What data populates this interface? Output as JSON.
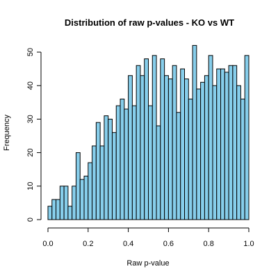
{
  "chart_data": {
    "type": "bar",
    "title": "Distribution of raw p-values - KO vs WT",
    "xlabel": "Raw p-value",
    "ylabel": "Frequency",
    "xlim": [
      0,
      1
    ],
    "ylim": [
      0,
      52
    ],
    "bin_width": 0.02,
    "bin_starts": [
      0.0,
      0.02,
      0.04,
      0.06,
      0.08,
      0.1,
      0.12,
      0.14,
      0.16,
      0.18,
      0.2,
      0.22,
      0.24,
      0.26,
      0.28,
      0.3,
      0.32,
      0.34,
      0.36,
      0.38,
      0.4,
      0.42,
      0.44,
      0.46,
      0.48,
      0.5,
      0.52,
      0.54,
      0.56,
      0.58,
      0.6,
      0.62,
      0.64,
      0.66,
      0.68,
      0.7,
      0.72,
      0.74,
      0.76,
      0.78,
      0.8,
      0.82,
      0.84,
      0.86,
      0.88,
      0.9,
      0.92,
      0.94,
      0.96,
      0.98
    ],
    "values": [
      4,
      6,
      6,
      10,
      10,
      4,
      10,
      20,
      12,
      13,
      17,
      22,
      29,
      22,
      31,
      30,
      26,
      34,
      36,
      33,
      43,
      34,
      46,
      43,
      48,
      34,
      49,
      28,
      48,
      43,
      42,
      46,
      32,
      45,
      42,
      36,
      52,
      39,
      41,
      43,
      49,
      40,
      45,
      45,
      44,
      46,
      46,
      40,
      36,
      49
    ],
    "x_ticks": [
      "0.0",
      "0.2",
      "0.4",
      "0.6",
      "0.8",
      "1.0"
    ],
    "x_tick_values": [
      0,
      0.2,
      0.4,
      0.6,
      0.8,
      1.0
    ],
    "y_ticks": [
      "0",
      "10",
      "20",
      "30",
      "40",
      "50"
    ],
    "y_tick_values": [
      0,
      10,
      20,
      30,
      40,
      50
    ],
    "bar_color": "#87ceeb",
    "grid": false
  }
}
